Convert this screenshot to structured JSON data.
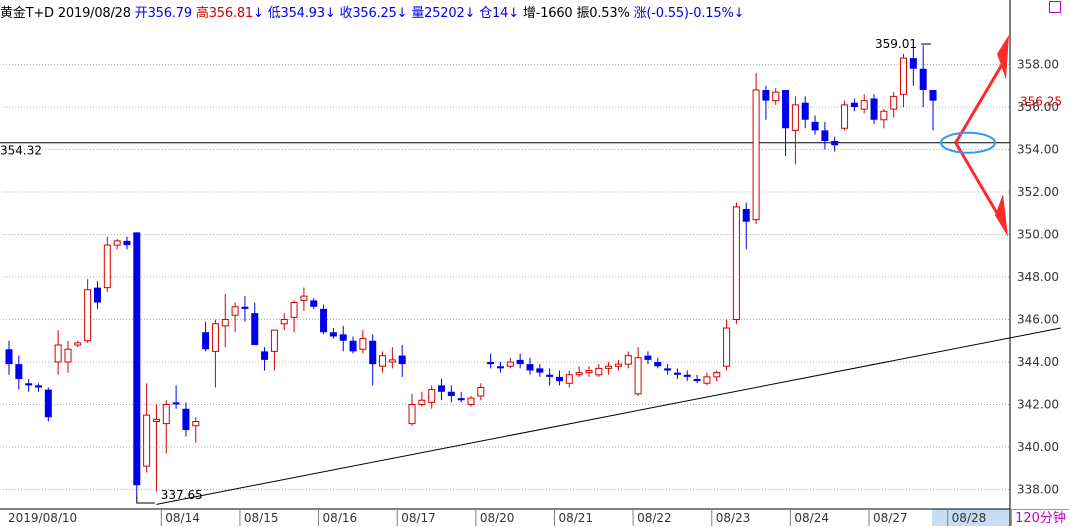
{
  "header": {
    "symbol": "黄金T+D",
    "date": "2019/08/28",
    "open_label": "开",
    "open": "356.79",
    "high_label": "高",
    "high": "356.81",
    "low_label": "低",
    "low": "354.93",
    "close_label": "收",
    "close": "356.25",
    "volume_label": "量",
    "volume": "25202",
    "position_label": "仓",
    "position": "14",
    "increase_label": "增",
    "increase": "-1660",
    "amplitude_label": "振",
    "amplitude": "0.53%",
    "change_label": "涨",
    "change": "(-0.55)-0.15%",
    "arrow": "↓"
  },
  "period": "120分钟",
  "chart_data": {
    "type": "candlestick",
    "ylim": [
      336.8,
      360.2
    ],
    "yticks": [
      "338.00",
      "340.00",
      "342.00",
      "344.00",
      "346.00",
      "348.00",
      "350.00",
      "352.00",
      "354.00",
      "356.00",
      "358.00"
    ],
    "ytick_values": [
      338,
      340,
      342,
      344,
      346,
      348,
      350,
      352,
      354,
      356,
      358
    ],
    "xticks": [
      "2019/08/10",
      "08/14",
      "08/15",
      "08/16",
      "08/17",
      "08/20",
      "08/21",
      "08/22",
      "08/23",
      "08/24",
      "08/27",
      "08/28"
    ],
    "xtick_index": [
      0,
      16,
      24,
      32,
      40,
      48,
      56,
      64,
      72,
      80,
      88,
      96
    ],
    "last_price": "356.25",
    "level_price": 354.32,
    "level_label": "354.32",
    "max_label": "359.01",
    "max_value": 359.01,
    "max_index": 94,
    "min_label": "337.65",
    "min_value": 337.65,
    "min_index": 13,
    "trendline": [
      {
        "index": 15,
        "value": 337.3
      },
      {
        "index": 107,
        "value": 345.6
      }
    ],
    "colors": {
      "up": "#d40000",
      "down": "#0000ee",
      "grid": "#b0b0b0",
      "axis": "#000000",
      "arrow": "#ff2a2a",
      "ellipse": "#3399ee",
      "highlight": "#c8ddf4"
    },
    "candles": [
      [
        344.6,
        345.0,
        343.4,
        343.9
      ],
      [
        343.9,
        344.3,
        342.7,
        343.2
      ],
      [
        343.0,
        343.2,
        342.6,
        342.9
      ],
      [
        342.9,
        343.0,
        342.6,
        342.8
      ],
      [
        342.7,
        342.8,
        341.2,
        341.4
      ],
      [
        344.0,
        345.5,
        343.4,
        344.8
      ],
      [
        344.0,
        345.0,
        343.5,
        344.6
      ],
      [
        344.8,
        345.0,
        344.7,
        344.9
      ],
      [
        345.0,
        347.9,
        344.9,
        347.4
      ],
      [
        347.5,
        347.8,
        346.5,
        346.8
      ],
      [
        347.5,
        349.9,
        347.3,
        349.5
      ],
      [
        349.5,
        349.8,
        349.3,
        349.7
      ],
      [
        349.7,
        349.9,
        349.3,
        349.5
      ],
      [
        350.1,
        350.1,
        337.6,
        338.2
      ],
      [
        339.1,
        343.0,
        338.8,
        341.5
      ],
      [
        341.2,
        342.0,
        337.9,
        341.3
      ],
      [
        341.1,
        342.2,
        339.7,
        342.0
      ],
      [
        342.1,
        342.9,
        341.8,
        342.0
      ],
      [
        341.8,
        342.1,
        340.5,
        340.8
      ],
      [
        341.0,
        341.4,
        340.2,
        341.2
      ],
      [
        345.4,
        345.9,
        344.5,
        344.6
      ],
      [
        344.5,
        346.0,
        342.8,
        345.8
      ],
      [
        345.7,
        347.2,
        344.7,
        346.0
      ],
      [
        346.2,
        346.8,
        345.4,
        346.6
      ],
      [
        346.6,
        347.1,
        345.9,
        346.5
      ],
      [
        346.3,
        346.8,
        344.9,
        344.8
      ],
      [
        344.5,
        344.7,
        343.6,
        344.1
      ],
      [
        344.5,
        345.5,
        343.6,
        345.5
      ],
      [
        345.8,
        346.3,
        345.5,
        346.0
      ],
      [
        346.1,
        346.9,
        345.4,
        346.8
      ],
      [
        346.9,
        347.5,
        346.4,
        347.1
      ],
      [
        346.9,
        347.0,
        346.5,
        346.6
      ],
      [
        346.5,
        346.7,
        345.3,
        345.4
      ],
      [
        345.4,
        345.6,
        345.1,
        345.2
      ],
      [
        345.3,
        345.7,
        344.5,
        345.0
      ],
      [
        345.0,
        345.2,
        344.4,
        344.5
      ],
      [
        344.6,
        345.5,
        344.4,
        345.1
      ],
      [
        345.0,
        345.3,
        342.9,
        343.9
      ],
      [
        343.8,
        344.5,
        343.5,
        344.3
      ],
      [
        344.0,
        344.7,
        343.7,
        344.1
      ],
      [
        344.3,
        344.8,
        343.3,
        343.9
      ],
      [
        341.1,
        342.5,
        341.0,
        342.0
      ],
      [
        342.0,
        342.6,
        341.9,
        342.2
      ],
      [
        342.1,
        342.9,
        341.8,
        342.7
      ],
      [
        342.9,
        343.2,
        342.2,
        342.6
      ],
      [
        342.6,
        342.9,
        342.1,
        342.4
      ],
      [
        342.3,
        342.6,
        342.1,
        342.2
      ],
      [
        342.0,
        342.4,
        341.9,
        342.3
      ],
      [
        342.4,
        343.0,
        342.2,
        342.8
      ],
      [
        344.0,
        344.4,
        343.7,
        343.9
      ],
      [
        343.8,
        344.0,
        343.5,
        343.7
      ],
      [
        343.8,
        344.2,
        343.7,
        344.0
      ],
      [
        344.1,
        344.4,
        343.7,
        343.9
      ],
      [
        343.9,
        344.2,
        343.4,
        343.6
      ],
      [
        343.7,
        343.9,
        343.3,
        343.5
      ],
      [
        343.4,
        343.7,
        342.9,
        343.3
      ],
      [
        343.3,
        343.6,
        342.9,
        343.1
      ],
      [
        343.0,
        343.6,
        342.8,
        343.4
      ],
      [
        343.4,
        343.8,
        343.3,
        343.5
      ],
      [
        343.5,
        343.8,
        343.3,
        343.6
      ],
      [
        343.4,
        343.9,
        343.3,
        343.7
      ],
      [
        343.7,
        344.0,
        343.4,
        343.8
      ],
      [
        343.8,
        344.1,
        343.6,
        343.9
      ],
      [
        343.9,
        344.5,
        343.7,
        344.3
      ],
      [
        342.5,
        344.7,
        342.4,
        344.2
      ],
      [
        344.3,
        344.5,
        343.9,
        344.1
      ],
      [
        344.0,
        344.2,
        343.7,
        343.8
      ],
      [
        343.7,
        343.9,
        343.4,
        343.6
      ],
      [
        343.5,
        343.7,
        343.2,
        343.4
      ],
      [
        343.4,
        343.6,
        343.1,
        343.3
      ],
      [
        343.2,
        343.4,
        343.0,
        343.1
      ],
      [
        343.0,
        343.5,
        342.9,
        343.3
      ],
      [
        343.3,
        343.6,
        343.1,
        343.5
      ],
      [
        343.8,
        346.0,
        343.6,
        345.6
      ],
      [
        346.0,
        351.5,
        345.8,
        351.3
      ],
      [
        351.2,
        351.5,
        349.3,
        350.6
      ],
      [
        350.7,
        357.6,
        350.5,
        356.8
      ],
      [
        356.8,
        357.0,
        355.4,
        356.3
      ],
      [
        356.3,
        356.9,
        356.1,
        356.7
      ],
      [
        356.8,
        356.8,
        353.7,
        355.0
      ],
      [
        354.9,
        356.5,
        353.3,
        356.1
      ],
      [
        356.2,
        356.5,
        355.0,
        355.4
      ],
      [
        355.3,
        355.6,
        354.7,
        354.9
      ],
      [
        354.9,
        355.3,
        354.0,
        354.4
      ],
      [
        354.4,
        354.6,
        353.9,
        354.2
      ],
      [
        355.0,
        356.3,
        354.9,
        356.1
      ],
      [
        356.2,
        356.4,
        355.8,
        356.0
      ],
      [
        355.9,
        356.6,
        355.7,
        356.3
      ],
      [
        356.4,
        356.6,
        355.2,
        355.4
      ],
      [
        355.4,
        355.9,
        355.0,
        355.8
      ],
      [
        355.9,
        356.7,
        355.5,
        356.5
      ],
      [
        356.6,
        358.5,
        356.0,
        358.3
      ],
      [
        358.3,
        359.0,
        357.0,
        357.8
      ],
      [
        357.8,
        358.9,
        356.0,
        356.8
      ],
      [
        356.8,
        356.8,
        354.9,
        356.3
      ]
    ]
  }
}
